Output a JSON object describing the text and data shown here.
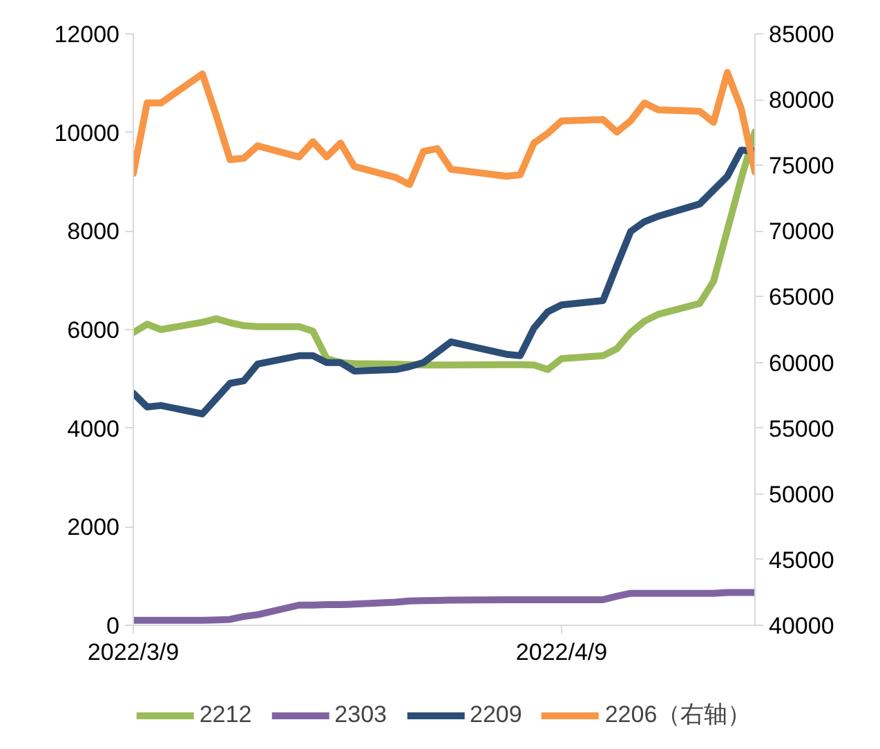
{
  "chart_data": {
    "type": "line",
    "x": [
      "2022-03-09",
      "2022-03-10",
      "2022-03-11",
      "2022-03-14",
      "2022-03-15",
      "2022-03-16",
      "2022-03-17",
      "2022-03-18",
      "2022-03-21",
      "2022-03-22",
      "2022-03-23",
      "2022-03-24",
      "2022-03-25",
      "2022-03-28",
      "2022-03-29",
      "2022-03-30",
      "2022-03-31",
      "2022-04-01",
      "2022-04-05",
      "2022-04-06",
      "2022-04-07",
      "2022-04-08",
      "2022-04-09",
      "2022-04-12",
      "2022-04-13",
      "2022-04-14",
      "2022-04-15",
      "2022-04-16",
      "2022-04-19",
      "2022-04-20",
      "2022-04-21",
      "2022-04-22",
      "2022-04-23"
    ],
    "series": [
      {
        "name": "2212",
        "color": "#9bbb59",
        "values": [
          5940,
          6110,
          6000,
          6150,
          6220,
          6140,
          6080,
          6060,
          6060,
          5970,
          5410,
          5330,
          5310,
          5300,
          5290,
          5280,
          5280,
          5280,
          5290,
          5290,
          5280,
          5190,
          5410,
          5470,
          5610,
          5940,
          6170,
          6310,
          6530,
          6980,
          8020,
          9060,
          10010
        ]
      },
      {
        "name": "2303",
        "color": "#8064a2",
        "values": [
          100,
          100,
          100,
          100,
          110,
          120,
          180,
          215,
          410,
          410,
          420,
          420,
          430,
          470,
          495,
          500,
          505,
          510,
          520,
          520,
          520,
          520,
          520,
          520,
          590,
          650,
          650,
          650,
          650,
          650,
          665,
          665,
          665
        ]
      },
      {
        "name": "2209",
        "color": "#2c4d75",
        "values": [
          4710,
          4430,
          4460,
          4290,
          4600,
          4910,
          4960,
          5300,
          5470,
          5470,
          5330,
          5330,
          5160,
          5190,
          5250,
          5330,
          5540,
          5750,
          5500,
          5470,
          6030,
          6360,
          6500,
          6590,
          7300,
          7990,
          8190,
          8300,
          8550,
          8830,
          9110,
          9640,
          9620
        ]
      },
      {
        "name": "2206（右轴）",
        "color": "#f79646",
        "axis": "y2",
        "values": [
          74380,
          79740,
          79740,
          81950,
          78800,
          75430,
          75540,
          76480,
          75640,
          76800,
          75640,
          76690,
          74910,
          74070,
          73540,
          76060,
          76270,
          74700,
          74170,
          74280,
          76690,
          77430,
          78380,
          78480,
          77530,
          78380,
          79740,
          79220,
          79110,
          78270,
          82060,
          79320,
          74490
        ]
      }
    ],
    "xlim": [
      "2022-03-09",
      "2022-04-23"
    ],
    "xticks": [
      {
        "value": "2022-03-09",
        "label": "2022/3/9"
      },
      {
        "value": "2022-04-09",
        "label": "2022/4/9"
      }
    ],
    "ylim": [
      0,
      12000
    ],
    "yticks": [
      0,
      2000,
      4000,
      6000,
      8000,
      10000,
      12000
    ],
    "y2lim": [
      40000,
      85000
    ],
    "y2ticks": [
      40000,
      45000,
      50000,
      55000,
      60000,
      65000,
      70000,
      75000,
      80000,
      85000
    ],
    "grid": false,
    "legend": "bottom",
    "line_style": "solid",
    "marker": "none"
  }
}
